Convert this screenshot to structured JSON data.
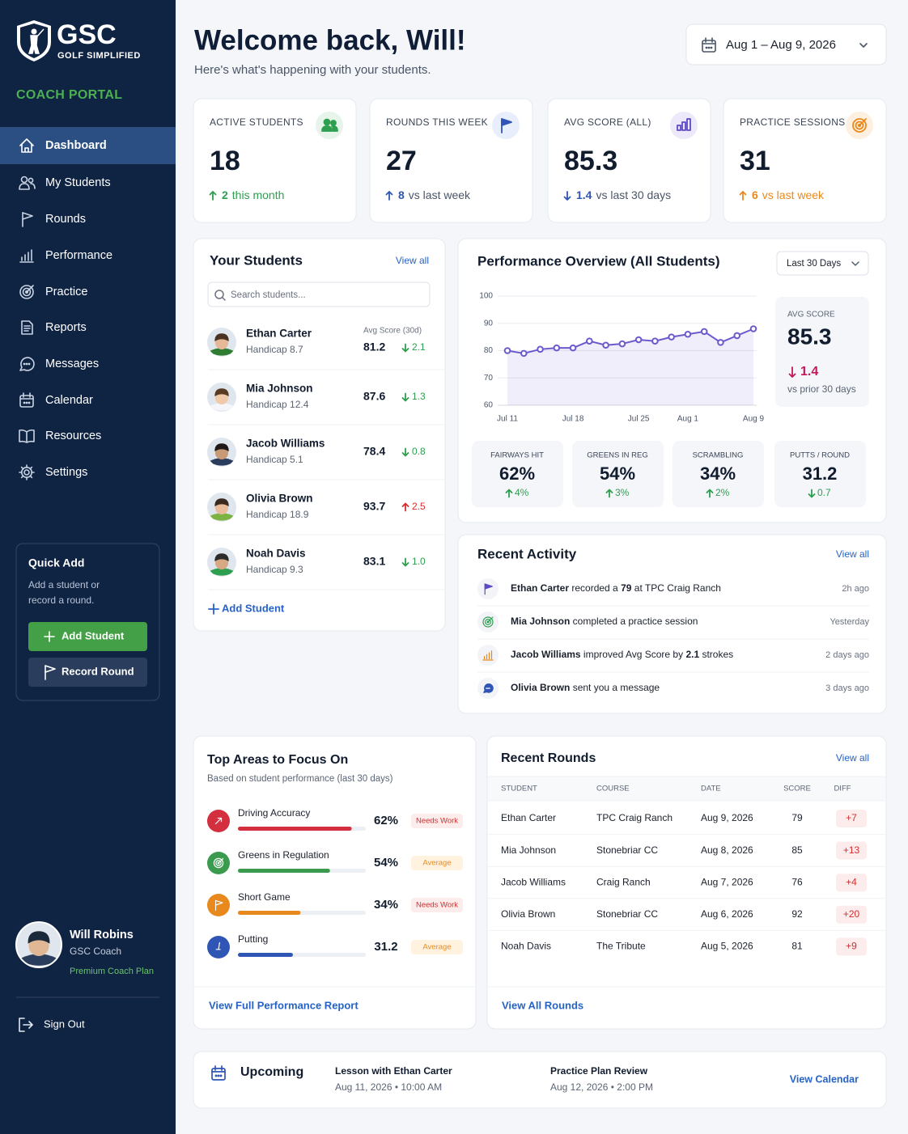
{
  "sidebar": {
    "brand": "GSC",
    "tagline": "GOLF SIMPLIFIED",
    "portal": "COACH PORTAL",
    "nav": [
      "Dashboard",
      "My Students",
      "Rounds",
      "Performance",
      "Practice",
      "Reports",
      "Messages",
      "Calendar",
      "Resources",
      "Settings"
    ],
    "quick_add": {
      "title": "Quick Add",
      "text": "Add a student or record a round.",
      "buttons": [
        "Add Student",
        "Record Round"
      ]
    },
    "user": {
      "name": "Will Robins",
      "role": "GSC Coach",
      "plan": "Premium Coach Plan"
    },
    "sign_out": "Sign Out"
  },
  "header": {
    "title": "Welcome back, Will!",
    "subtitle": "Here's what's happening with your students.",
    "date_range": "Aug 1 – Aug 9, 2026"
  },
  "stats": [
    {
      "label": "ACTIVE STUDENTS",
      "value": "18",
      "delta": "2",
      "note": "this month",
      "direction": "up",
      "color": "#2e9e4f",
      "note_color": "#2e9e4f",
      "icon_bg": "#e6f4ea"
    },
    {
      "label": "ROUNDS THIS WEEK",
      "value": "27",
      "delta": "8",
      "note": "vs last week",
      "direction": "up",
      "color": "#2f55b5",
      "note_color": "#4a5568",
      "icon_bg": "#e8eefb"
    },
    {
      "label": "AVG SCORE (ALL)",
      "value": "85.3",
      "delta": "1.4",
      "note": "vs last 30 days",
      "direction": "down",
      "color": "#2f55b5",
      "note_color": "#4a5568",
      "icon_bg": "#ede9fb"
    },
    {
      "label": "PRACTICE SESSIONS",
      "value": "31",
      "delta": "6",
      "note": "vs last week",
      "direction": "up",
      "color": "#e8891d",
      "note_color": "#e8891d",
      "icon_bg": "#fdf0e0"
    }
  ],
  "students": {
    "title": "Your Students",
    "view_all": "View all",
    "search": "Search students...",
    "score_header": "Avg Score (30d)",
    "rows": [
      {
        "name": "Ethan Carter",
        "handicap": "Handicap 8.7",
        "score": "81.2",
        "delta": "2.1",
        "direction": "down",
        "color": "#2e9e4f"
      },
      {
        "name": "Mia Johnson",
        "handicap": "Handicap 12.4",
        "score": "87.6",
        "delta": "1.3",
        "direction": "down",
        "color": "#2e9e4f"
      },
      {
        "name": "Jacob Williams",
        "handicap": "Handicap 5.1",
        "score": "78.4",
        "delta": "0.8",
        "direction": "down",
        "color": "#2e9e4f"
      },
      {
        "name": "Olivia Brown",
        "handicap": "Handicap 18.9",
        "score": "93.7",
        "delta": "2.5",
        "direction": "up",
        "color": "#d32f2f"
      },
      {
        "name": "Noah Davis",
        "handicap": "Handicap 9.3",
        "score": "83.1",
        "delta": "1.0",
        "direction": "down",
        "color": "#2e9e4f"
      }
    ],
    "add": "Add Student"
  },
  "chart_data": {
    "type": "line",
    "title": "Performance Overview (All Students)",
    "range": "Last 30 Days",
    "categories": [
      "Jul 11",
      null,
      null,
      null,
      "Jul 18",
      null,
      null,
      null,
      "Jul 25",
      null,
      null,
      "Aug 1",
      null,
      null,
      null,
      "Aug 9"
    ],
    "values": [
      80,
      79,
      80.5,
      81,
      81,
      83.5,
      82,
      82.5,
      84,
      83.5,
      85,
      86,
      87,
      83,
      85.5,
      88
    ],
    "color": "#6a5acd",
    "ylim": [
      60,
      100
    ],
    "yticks": [
      60,
      70,
      80,
      90,
      100
    ],
    "grid": true
  },
  "overview": {
    "avg_label": "AVG SCORE",
    "avg": "85.3",
    "delta": "1.4",
    "direction": "down",
    "color": "#c2185b",
    "note": "vs prior 30 days",
    "metrics": [
      {
        "label": "FAIRWAYS HIT",
        "value": "62%",
        "delta": "4%",
        "direction": "up"
      },
      {
        "label": "GREENS IN REG",
        "value": "54%",
        "delta": "3%",
        "direction": "up"
      },
      {
        "label": "SCRAMBLING",
        "value": "34%",
        "delta": "2%",
        "direction": "up"
      },
      {
        "label": "PUTTS / ROUND",
        "value": "31.2",
        "delta": "0.7",
        "direction": "down"
      }
    ]
  },
  "activity": {
    "title": "Recent Activity",
    "view_all": "View all",
    "items": [
      {
        "parts": [
          {
            "text": "Ethan Carter",
            "bold": true
          },
          {
            "text": " recorded a "
          },
          {
            "text": "79",
            "bold": true
          },
          {
            "text": " at TPC Craig Ranch"
          }
        ],
        "time": "2h ago",
        "icon": "flag",
        "color": "#5b4bc4"
      },
      {
        "parts": [
          {
            "text": "Mia Johnson",
            "bold": true
          },
          {
            "text": " completed a practice session"
          }
        ],
        "time": "Yesterday",
        "icon": "target",
        "color": "#2e9e4f"
      },
      {
        "parts": [
          {
            "text": "Jacob Williams",
            "bold": true
          },
          {
            "text": " improved Avg Score by "
          },
          {
            "text": "2.1",
            "bold": true
          },
          {
            "text": " strokes"
          }
        ],
        "time": "2 days ago",
        "icon": "bars",
        "color": "#e8891d"
      },
      {
        "parts": [
          {
            "text": "Olivia Brown",
            "bold": true
          },
          {
            "text": " sent you a message"
          }
        ],
        "time": "3 days ago",
        "icon": "chat",
        "color": "#2f55b5"
      }
    ]
  },
  "focus": {
    "title": "Top Areas to Focus On",
    "subtitle": "Based on student performance (last 30 days)",
    "areas": [
      {
        "name": "Driving Accuracy",
        "value": "62%",
        "badge": "Needs Work",
        "progress": 89,
        "color": "#d32f3f",
        "badge_color": "#d32f2f",
        "badge_bg": "#fdecec"
      },
      {
        "name": "Greens in Regulation",
        "value": "54%",
        "badge": "Average",
        "progress": 72,
        "color": "#3a9b4e",
        "badge_color": "#e8891d",
        "badge_bg": "#fff3e0"
      },
      {
        "name": "Short Game",
        "value": "34%",
        "badge": "Needs Work",
        "progress": 49,
        "color": "#e8891d",
        "badge_color": "#d32f2f",
        "badge_bg": "#fdecec"
      },
      {
        "name": "Putting",
        "value": "31.2",
        "badge": "Average",
        "progress": 43,
        "color": "#2f55b5",
        "badge_color": "#e8891d",
        "badge_bg": "#fff3e0"
      }
    ],
    "progress_max": 100,
    "link": "View Full Performance Report"
  },
  "rounds": {
    "title": "Recent Rounds",
    "view_all": "View all",
    "columns": [
      "STUDENT",
      "COURSE",
      "DATE",
      "SCORE",
      "DIFF"
    ],
    "rows": [
      [
        "Ethan Carter",
        "TPC Craig Ranch",
        "Aug 9, 2026",
        "79",
        "+7"
      ],
      [
        "Mia Johnson",
        "Stonebriar CC",
        "Aug 8, 2026",
        "85",
        "+13"
      ],
      [
        "Jacob Williams",
        "Craig Ranch",
        "Aug 7, 2026",
        "76",
        "+4"
      ],
      [
        "Olivia Brown",
        "Stonebriar CC",
        "Aug 6, 2026",
        "92",
        "+20"
      ],
      [
        "Noah Davis",
        "The Tribute",
        "Aug 5, 2026",
        "81",
        "+9"
      ]
    ],
    "link": "View All Rounds"
  },
  "upcoming": {
    "title": "Upcoming",
    "items": [
      {
        "title": "Lesson with Ethan Carter",
        "when": "Aug 11, 2026 • 10:00 AM"
      },
      {
        "title": "Practice Plan Review",
        "when": "Aug 12, 2026 • 2:00 PM"
      }
    ],
    "link": "View Calendar"
  }
}
